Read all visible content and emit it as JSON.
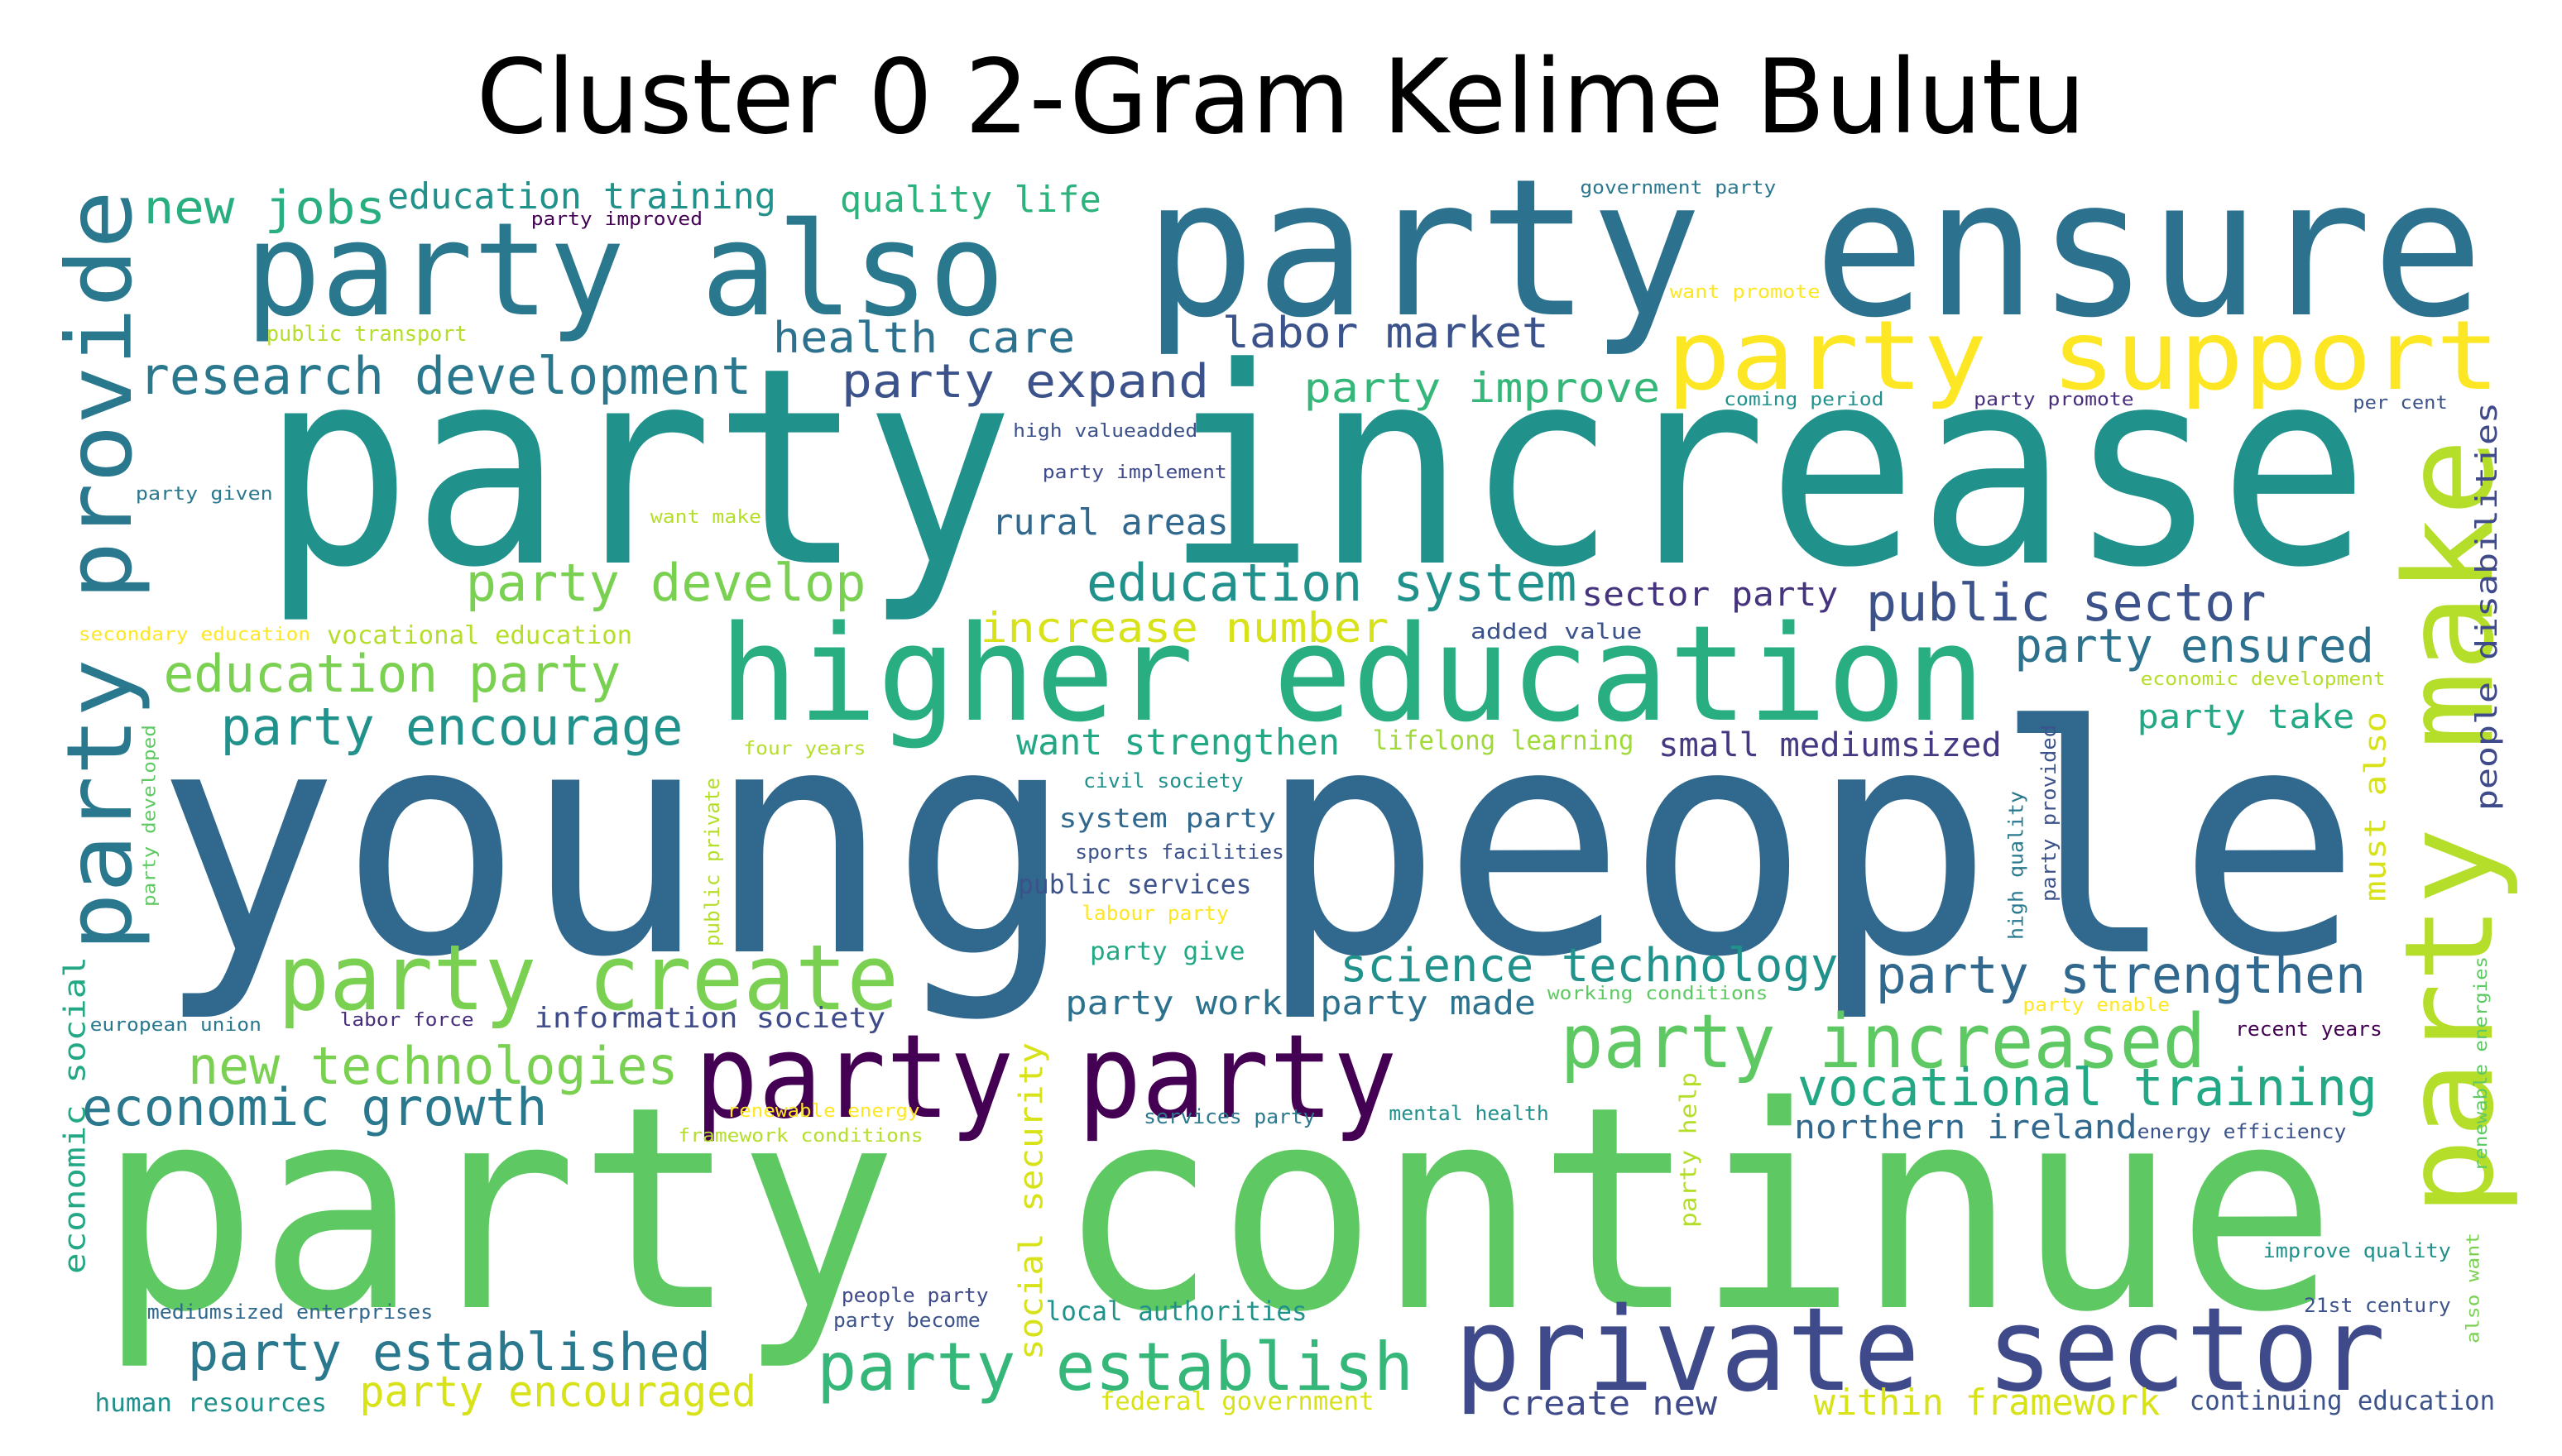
{
  "chart_data": {
    "type": "wordcloud",
    "title": "Cluster 0 2-Gram Kelime Bulutu",
    "words": [
      {
        "text": "young people",
        "color": "#31688e"
      },
      {
        "text": "party continue",
        "color": "#5ec962"
      },
      {
        "text": "party increase",
        "color": "#21918c"
      },
      {
        "text": "party ensure",
        "color": "#2c728e"
      },
      {
        "text": "higher education",
        "color": "#28ae80"
      },
      {
        "text": "party also",
        "color": "#2a788e"
      },
      {
        "text": "party support",
        "color": "#fde725"
      },
      {
        "text": "party make",
        "color": "#b5de2b"
      },
      {
        "text": "party provide",
        "color": "#2a788e"
      },
      {
        "text": "private sector",
        "color": "#3e4a89"
      },
      {
        "text": "party party",
        "color": "#440154"
      },
      {
        "text": "party create",
        "color": "#7ad151"
      },
      {
        "text": "party increased",
        "color": "#5ec962"
      },
      {
        "text": "party establish",
        "color": "#35b779"
      },
      {
        "text": "research development",
        "color": "#2a788e"
      },
      {
        "text": "party strengthen",
        "color": "#31688e"
      },
      {
        "text": "vocational training",
        "color": "#22a884"
      },
      {
        "text": "party established",
        "color": "#2a788e"
      },
      {
        "text": "education party",
        "color": "#7ad151"
      },
      {
        "text": "party encourage",
        "color": "#21918c"
      },
      {
        "text": "new technologies",
        "color": "#7ad151"
      },
      {
        "text": "economic growth",
        "color": "#2a788e"
      },
      {
        "text": "party develop",
        "color": "#7ad151"
      },
      {
        "text": "education system",
        "color": "#21918c"
      },
      {
        "text": "public sector",
        "color": "#3b528b"
      },
      {
        "text": "party ensured",
        "color": "#2c728e"
      },
      {
        "text": "science technology",
        "color": "#21918c"
      },
      {
        "text": "party expand",
        "color": "#3b528b"
      },
      {
        "text": "labor market",
        "color": "#3b528b"
      },
      {
        "text": "health care",
        "color": "#2c728e"
      },
      {
        "text": "new jobs",
        "color": "#29af7f"
      },
      {
        "text": "education training",
        "color": "#21918c"
      },
      {
        "text": "quality life",
        "color": "#2db27d"
      },
      {
        "text": "party improve",
        "color": "#35b779"
      },
      {
        "text": "rural areas",
        "color": "#31688e"
      },
      {
        "text": "increase number",
        "color": "#d8e219"
      },
      {
        "text": "want strengthen",
        "color": "#22a884"
      },
      {
        "text": "sector party",
        "color": "#46337e"
      },
      {
        "text": "small mediumsized",
        "color": "#443983"
      },
      {
        "text": "party take",
        "color": "#22a884"
      },
      {
        "text": "lifelong learning",
        "color": "#a0da39"
      },
      {
        "text": "vocational education",
        "color": "#b5de2b"
      },
      {
        "text": "secondary education",
        "color": "#fde725"
      },
      {
        "text": "added value",
        "color": "#3b528b"
      },
      {
        "text": "information society",
        "color": "#3e4a89"
      },
      {
        "text": "labor force",
        "color": "#472d7b"
      },
      {
        "text": "european union",
        "color": "#2a788e"
      },
      {
        "text": "party work",
        "color": "#2c728e"
      },
      {
        "text": "party made",
        "color": "#2c728e"
      },
      {
        "text": "working conditions",
        "color": "#5ec962"
      },
      {
        "text": "party enable",
        "color": "#fde725"
      },
      {
        "text": "recent years",
        "color": "#440154"
      },
      {
        "text": "northern ireland",
        "color": "#31688e"
      },
      {
        "text": "energy efficiency",
        "color": "#3b528b"
      },
      {
        "text": "services party",
        "color": "#2a788e"
      },
      {
        "text": "mental health",
        "color": "#21918c"
      },
      {
        "text": "renewable energy",
        "color": "#fde725"
      },
      {
        "text": "framework conditions",
        "color": "#b5de2b"
      },
      {
        "text": "party give",
        "color": "#22a884"
      },
      {
        "text": "labour party",
        "color": "#fde725"
      },
      {
        "text": "public services",
        "color": "#3b528b"
      },
      {
        "text": "sports facilities",
        "color": "#3b528b"
      },
      {
        "text": "system party",
        "color": "#31688e"
      },
      {
        "text": "civil society",
        "color": "#21918c"
      },
      {
        "text": "four years",
        "color": "#b5de2b"
      },
      {
        "text": "high valueadded",
        "color": "#3b528b"
      },
      {
        "text": "party implement",
        "color": "#3e4a89"
      },
      {
        "text": "party given",
        "color": "#2a788e"
      },
      {
        "text": "want make",
        "color": "#b5de2b"
      },
      {
        "text": "public transport",
        "color": "#b5de2b"
      },
      {
        "text": "party improved",
        "color": "#440154"
      },
      {
        "text": "government party",
        "color": "#2a788e"
      },
      {
        "text": "want promote",
        "color": "#fde725"
      },
      {
        "text": "coming period",
        "color": "#21918c"
      },
      {
        "text": "party promote",
        "color": "#472d7b"
      },
      {
        "text": "per cent",
        "color": "#3b528b"
      },
      {
        "text": "economic development",
        "color": "#b5de2b"
      },
      {
        "text": "people disabilities",
        "color": "#3e4a89"
      },
      {
        "text": "must also",
        "color": "#d8e219"
      },
      {
        "text": "high quality",
        "color": "#2a788e"
      },
      {
        "text": "party provided",
        "color": "#3b528b"
      },
      {
        "text": "public private",
        "color": "#b5de2b"
      },
      {
        "text": "party developed",
        "color": "#5ec962"
      },
      {
        "text": "economic social",
        "color": "#22a884"
      },
      {
        "text": "social security",
        "color": "#d8e219"
      },
      {
        "text": "party help",
        "color": "#b5de2b"
      },
      {
        "text": "renewable energies",
        "color": "#5ec962"
      },
      {
        "text": "also want",
        "color": "#7ad151"
      },
      {
        "text": "improve quality",
        "color": "#21918c"
      },
      {
        "text": "21st century",
        "color": "#3b528b"
      },
      {
        "text": "people party",
        "color": "#3e4a89"
      },
      {
        "text": "party become",
        "color": "#3b528b"
      },
      {
        "text": "local authorities",
        "color": "#21918c"
      },
      {
        "text": "mediumsized enterprises",
        "color": "#31688e"
      },
      {
        "text": "human resources",
        "color": "#21918c"
      },
      {
        "text": "party encouraged",
        "color": "#d8e219"
      },
      {
        "text": "federal government",
        "color": "#d8e219"
      },
      {
        "text": "create new",
        "color": "#3e4a89"
      },
      {
        "text": "within framework",
        "color": "#d8e219"
      },
      {
        "text": "continuing education",
        "color": "#3b528b"
      }
    ]
  }
}
